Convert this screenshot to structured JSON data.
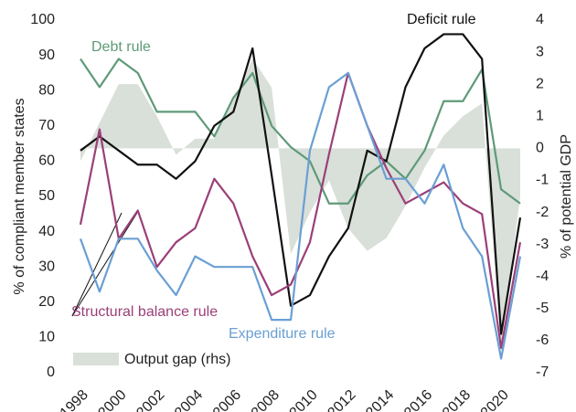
{
  "chart_data": {
    "type": "line",
    "y_label": "% of compliant member states",
    "y2_label": "% of potential GDP",
    "x": [
      1998,
      1999,
      2000,
      2001,
      2002,
      2003,
      2004,
      2005,
      2006,
      2007,
      2008,
      2009,
      2010,
      2011,
      2012,
      2013,
      2014,
      2015,
      2016,
      2017,
      2018,
      2019,
      2020,
      2021
    ],
    "xlim": [
      1998,
      2021
    ],
    "xticks": [
      1998,
      2000,
      2002,
      2004,
      2006,
      2008,
      2010,
      2012,
      2014,
      2016,
      2018,
      2020
    ],
    "ylim": [
      0,
      100
    ],
    "yticks": [
      0,
      10,
      20,
      30,
      40,
      50,
      60,
      70,
      80,
      90,
      100
    ],
    "y2lim": [
      -7,
      4
    ],
    "y2ticks": [
      -7,
      -6,
      -5,
      -4,
      -3,
      -2,
      -1,
      0,
      1,
      2,
      3,
      4
    ],
    "series": [
      {
        "name": "Output gap (rhs)",
        "color": "#d9dfd9",
        "axis": "y2",
        "kind": "area",
        "values": [
          -0.4,
          0.8,
          2.0,
          2.0,
          1.0,
          -0.2,
          0.3,
          0.3,
          1.5,
          2.8,
          1.9,
          -3.3,
          -2.0,
          -1.0,
          -2.5,
          -3.2,
          -2.8,
          -1.8,
          -0.6,
          0.4,
          1.0,
          1.4,
          -6.2,
          -1.5
        ]
      },
      {
        "name": "Debt rule",
        "color": "#5e9a78",
        "values": [
          89,
          81,
          89,
          85,
          74,
          74,
          74,
          67,
          78,
          85,
          70,
          64,
          60,
          48,
          48,
          56,
          60,
          55,
          63,
          77,
          77,
          86,
          52,
          48
        ]
      },
      {
        "name": "Deficit rule",
        "color": "#111111",
        "values": [
          63,
          67,
          63,
          59,
          59,
          55,
          60,
          70,
          74,
          92,
          56,
          19,
          22,
          33,
          41,
          63,
          60,
          81,
          92,
          96,
          96,
          89,
          11,
          44
        ]
      },
      {
        "name": "Structural balance rule",
        "color": "#9b3f78",
        "values": [
          42,
          69,
          38,
          46,
          30,
          37,
          41,
          55,
          48,
          33,
          22,
          25,
          37,
          62,
          85,
          70,
          58,
          48,
          51,
          54,
          48,
          45,
          7,
          37
        ]
      },
      {
        "name": "Expenditure rule",
        "color": "#6a9fd4",
        "values": [
          38,
          23,
          38,
          38,
          29,
          22,
          33,
          30,
          30,
          30,
          15,
          15,
          63,
          81,
          85,
          70,
          55,
          55,
          48,
          59,
          41,
          33,
          4,
          33
        ]
      }
    ]
  }
}
